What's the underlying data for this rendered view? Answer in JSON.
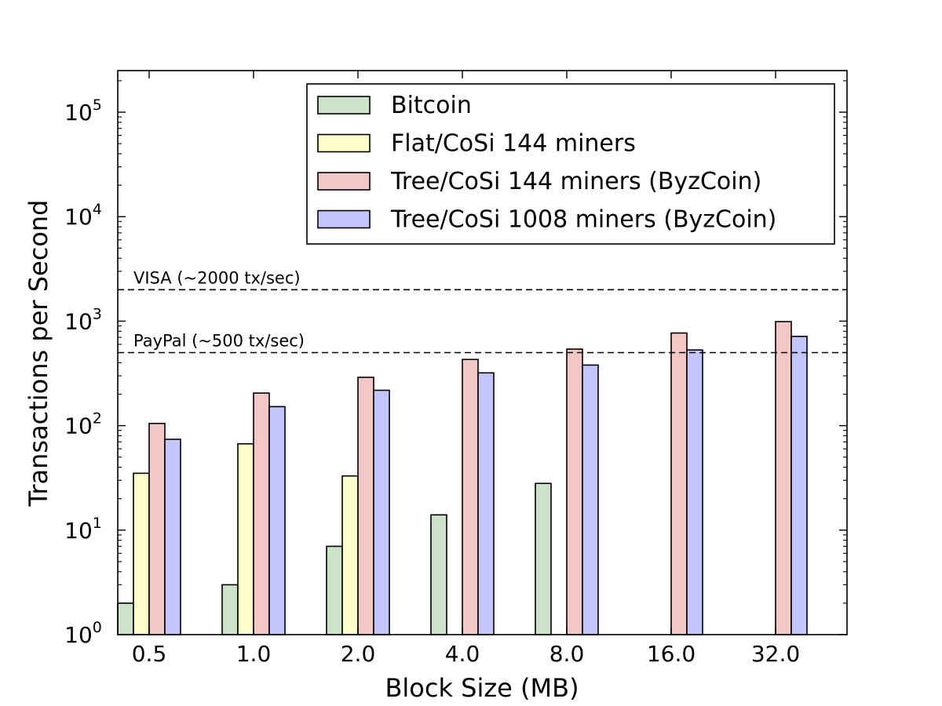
{
  "chart_data": {
    "type": "bar",
    "title": "",
    "xlabel": "Block Size (MB)",
    "ylabel": "Transactions per Second",
    "yscale": "log",
    "ylim": [
      1,
      250000
    ],
    "y_ticks": [
      {
        "value": 1,
        "base": "10",
        "exp": "0"
      },
      {
        "value": 10,
        "base": "10",
        "exp": "1"
      },
      {
        "value": 100,
        "base": "10",
        "exp": "2"
      },
      {
        "value": 1000,
        "base": "10",
        "exp": "3"
      },
      {
        "value": 10000,
        "base": "10",
        "exp": "4"
      },
      {
        "value": 100000,
        "base": "10",
        "exp": "5"
      }
    ],
    "categories": [
      "0.5",
      "1.0",
      "2.0",
      "4.0",
      "8.0",
      "16.0",
      "32.0"
    ],
    "series": [
      {
        "name": "Bitcoin",
        "color": "#cde3c9",
        "values": [
          2,
          3,
          7,
          14,
          28,
          null,
          null
        ]
      },
      {
        "name": "Flat/CoSi 144 miners",
        "color": "#fdfccb",
        "values": [
          35,
          67,
          33,
          null,
          null,
          null,
          null
        ]
      },
      {
        "name": "Tree/CoSi 144 miners (ByzCoin)",
        "color": "#f2c7c5",
        "values": [
          105,
          205,
          290,
          430,
          540,
          770,
          990
        ]
      },
      {
        "name": "Tree/CoSi 1008 miners (ByzCoin)",
        "color": "#c5c5fd",
        "values": [
          74,
          152,
          218,
          320,
          380,
          530,
          715
        ]
      }
    ],
    "reference_lines": [
      {
        "label": "VISA (~2000 tx/sec)",
        "value": 2000
      },
      {
        "label": "PayPal (~500 tx/sec)",
        "value": 500
      }
    ],
    "legend_position": "top-right",
    "grid": false
  }
}
